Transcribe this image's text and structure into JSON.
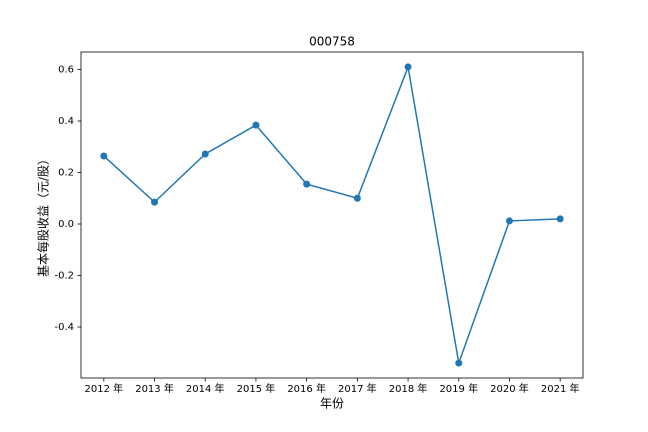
{
  "chart_data": {
    "type": "line",
    "title": "000758",
    "xlabel": "年份",
    "ylabel": "基本每股收益（元/股）",
    "categories": [
      "2012 年",
      "2013 年",
      "2014 年",
      "2015 年",
      "2016 年",
      "2017 年",
      "2018 年",
      "2019 年",
      "2020 年",
      "2021 年"
    ],
    "values": [
      0.264,
      0.085,
      0.272,
      0.384,
      0.155,
      0.1,
      0.61,
      -0.54,
      0.012,
      0.02
    ],
    "color": "#1f77b4",
    "ylim": [
      -0.598,
      0.668
    ],
    "yticks": [
      -0.4,
      -0.2,
      {
        "value": 0,
        "label": "0.0"
      },
      0.2,
      0.4,
      0.6
    ],
    "grid": false
  }
}
